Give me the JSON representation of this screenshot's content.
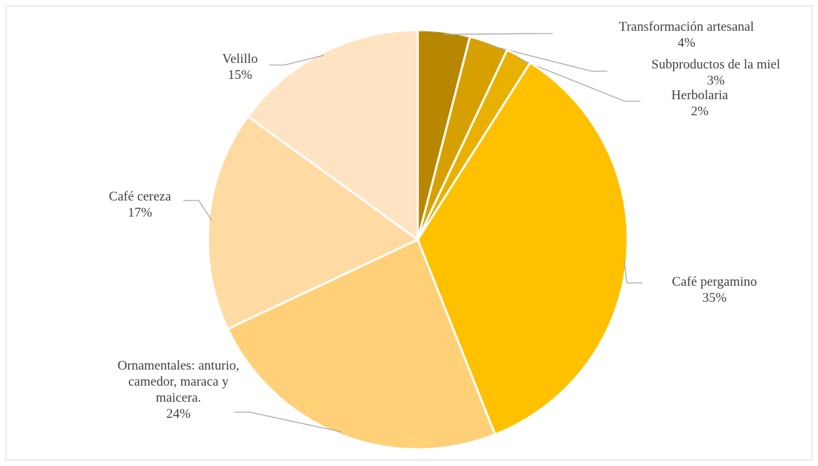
{
  "chart_data": {
    "type": "pie",
    "categories": [
      "Transformación artesanal",
      "Subproductos de la miel",
      "Herbolaria",
      "Café pergamino",
      "Ornamentales: anturio, camedor, maraca y maicera.",
      "Café cereza",
      "Velillo"
    ],
    "values": [
      4,
      3,
      2,
      35,
      24,
      17,
      15
    ],
    "value_labels": [
      "4%",
      "3%",
      "2%",
      "35%",
      "24%",
      "17%",
      "15%"
    ],
    "colors": [
      "#b78700",
      "#d6a100",
      "#e8b000",
      "#ffc000",
      "#ffd077",
      "#ffdaa2",
      "#ffe4c3"
    ]
  }
}
